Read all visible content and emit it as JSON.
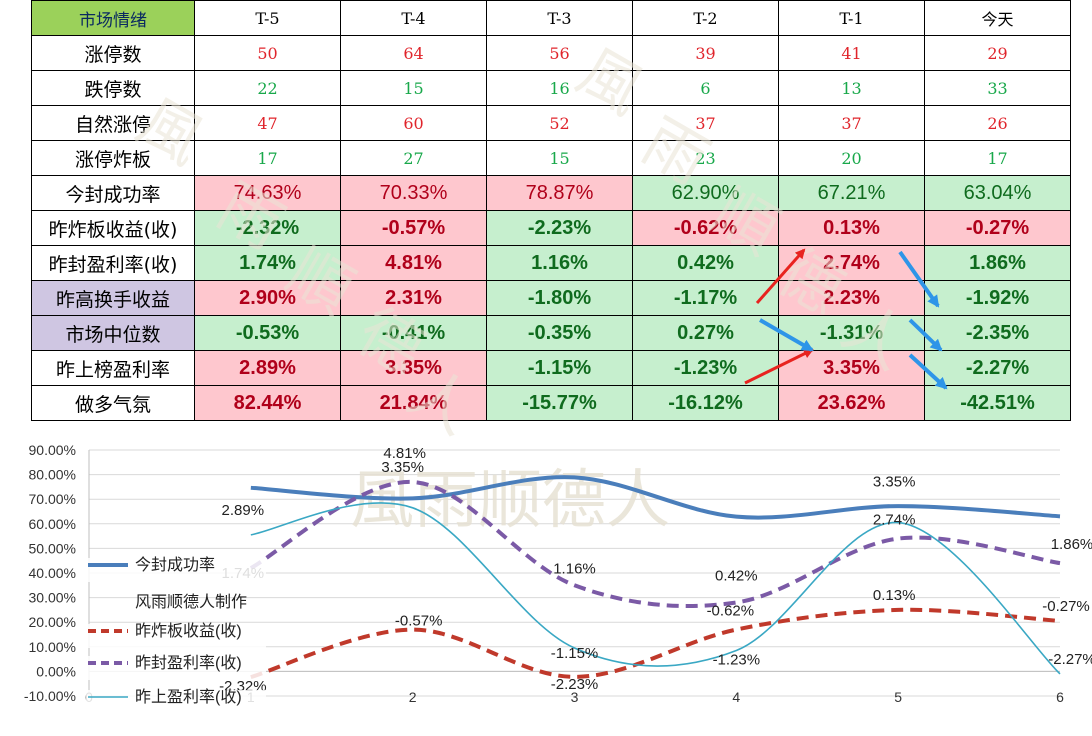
{
  "table": {
    "corner": "市场情绪",
    "columns": [
      "T-5",
      "T-4",
      "T-3",
      "T-2",
      "T-1",
      "今天"
    ],
    "rows": [
      {
        "label": "涨停数",
        "label_bg": "",
        "style": "count",
        "cells": [
          {
            "v": "50",
            "c": "red"
          },
          {
            "v": "64",
            "c": "red"
          },
          {
            "v": "56",
            "c": "red"
          },
          {
            "v": "39",
            "c": "red"
          },
          {
            "v": "41",
            "c": "red"
          },
          {
            "v": "29",
            "c": "red"
          }
        ]
      },
      {
        "label": "跌停数",
        "label_bg": "",
        "style": "count",
        "cells": [
          {
            "v": "22",
            "c": "green"
          },
          {
            "v": "15",
            "c": "green"
          },
          {
            "v": "16",
            "c": "green"
          },
          {
            "v": "6",
            "c": "green"
          },
          {
            "v": "13",
            "c": "green"
          },
          {
            "v": "33",
            "c": "green"
          }
        ]
      },
      {
        "label": "自然涨停",
        "label_bg": "",
        "style": "count",
        "cells": [
          {
            "v": "47",
            "c": "red"
          },
          {
            "v": "60",
            "c": "red"
          },
          {
            "v": "52",
            "c": "red"
          },
          {
            "v": "37",
            "c": "red"
          },
          {
            "v": "37",
            "c": "red"
          },
          {
            "v": "26",
            "c": "red"
          }
        ]
      },
      {
        "label": "涨停炸板",
        "label_bg": "",
        "style": "count",
        "cells": [
          {
            "v": "17",
            "c": "green"
          },
          {
            "v": "27",
            "c": "green"
          },
          {
            "v": "15",
            "c": "green"
          },
          {
            "v": "23",
            "c": "green"
          },
          {
            "v": "20",
            "c": "green"
          },
          {
            "v": "17",
            "c": "green"
          }
        ]
      },
      {
        "label": "今封成功率",
        "label_bg": "",
        "style": "plain",
        "cells": [
          {
            "v": "74.63%",
            "c": "dred",
            "bg": "pink"
          },
          {
            "v": "70.33%",
            "c": "dred",
            "bg": "pink"
          },
          {
            "v": "78.87%",
            "c": "dred",
            "bg": "pink"
          },
          {
            "v": "62.90%",
            "c": "dgreen",
            "bg": "green"
          },
          {
            "v": "67.21%",
            "c": "dgreen",
            "bg": "green"
          },
          {
            "v": "63.04%",
            "c": "dgreen",
            "bg": "green"
          }
        ]
      },
      {
        "label": "昨炸板收益(收)",
        "label_bg": "",
        "style": "bold",
        "cells": [
          {
            "v": "-2.32%",
            "c": "dgreen",
            "bg": "green"
          },
          {
            "v": "-0.57%",
            "c": "dred",
            "bg": "pink"
          },
          {
            "v": "-2.23%",
            "c": "dgreen",
            "bg": "green"
          },
          {
            "v": "-0.62%",
            "c": "dred",
            "bg": "pink"
          },
          {
            "v": "0.13%",
            "c": "dred",
            "bg": "pink"
          },
          {
            "v": "-0.27%",
            "c": "dred",
            "bg": "pink"
          }
        ]
      },
      {
        "label": "昨封盈利率(收)",
        "label_bg": "",
        "style": "bold",
        "cells": [
          {
            "v": "1.74%",
            "c": "dgreen",
            "bg": "green"
          },
          {
            "v": "4.81%",
            "c": "dred",
            "bg": "pink"
          },
          {
            "v": "1.16%",
            "c": "dgreen",
            "bg": "green"
          },
          {
            "v": "0.42%",
            "c": "dgreen",
            "bg": "green"
          },
          {
            "v": "2.74%",
            "c": "dred",
            "bg": "pink"
          },
          {
            "v": "1.86%",
            "c": "dgreen",
            "bg": "green"
          }
        ]
      },
      {
        "label": "昨高换手收益",
        "label_bg": "purple",
        "style": "bold",
        "cells": [
          {
            "v": "2.90%",
            "c": "dred",
            "bg": "pink"
          },
          {
            "v": "2.31%",
            "c": "dred",
            "bg": "pink"
          },
          {
            "v": "-1.80%",
            "c": "dgreen",
            "bg": "green"
          },
          {
            "v": "-1.17%",
            "c": "dgreen",
            "bg": "green"
          },
          {
            "v": "2.23%",
            "c": "dred",
            "bg": "pink"
          },
          {
            "v": "-1.92%",
            "c": "dgreen",
            "bg": "green"
          }
        ]
      },
      {
        "label": "市场中位数",
        "label_bg": "purple",
        "style": "bold",
        "cells": [
          {
            "v": "-0.53%",
            "c": "dgreen",
            "bg": "green"
          },
          {
            "v": "-0.41%",
            "c": "dgreen",
            "bg": "green"
          },
          {
            "v": "-0.35%",
            "c": "dgreen",
            "bg": "green"
          },
          {
            "v": "0.27%",
            "c": "dgreen",
            "bg": "green"
          },
          {
            "v": "-1.31%",
            "c": "dgreen",
            "bg": "green"
          },
          {
            "v": "-2.35%",
            "c": "dgreen",
            "bg": "green"
          }
        ]
      },
      {
        "label": "昨上榜盈利率",
        "label_bg": "",
        "style": "bold",
        "cells": [
          {
            "v": "2.89%",
            "c": "dred",
            "bg": "pink"
          },
          {
            "v": "3.35%",
            "c": "dred",
            "bg": "pink"
          },
          {
            "v": "-1.15%",
            "c": "dgreen",
            "bg": "green"
          },
          {
            "v": "-1.23%",
            "c": "dgreen",
            "bg": "green"
          },
          {
            "v": "3.35%",
            "c": "dred",
            "bg": "pink"
          },
          {
            "v": "-2.27%",
            "c": "dgreen",
            "bg": "green"
          }
        ]
      },
      {
        "label": "做多气氛",
        "label_bg": "",
        "style": "bold",
        "cells": [
          {
            "v": "82.44%",
            "c": "dred",
            "bg": "pink"
          },
          {
            "v": "21.84%",
            "c": "dred",
            "bg": "pink"
          },
          {
            "v": "-15.77%",
            "c": "dgreen",
            "bg": "green"
          },
          {
            "v": "-16.12%",
            "c": "dgreen",
            "bg": "green"
          },
          {
            "v": "23.62%",
            "c": "dred",
            "bg": "pink"
          },
          {
            "v": "-42.51%",
            "c": "dgreen",
            "bg": "green"
          }
        ]
      }
    ]
  },
  "watermark": {
    "chars": [
      "風",
      "雨",
      "順",
      "德",
      "人"
    ],
    "chart_text": "風雨顺德人"
  },
  "colors": {
    "pink_fill": "#fec7ce",
    "green_fill": "#c6efce",
    "corner_fill": "#9bd15a",
    "purple_fill": "#cfc6e2",
    "arrow_red": "#e8231f",
    "arrow_blue": "#2e95e8"
  },
  "chart_data": {
    "type": "line",
    "x": [
      0,
      1,
      2,
      3,
      4,
      5,
      6
    ],
    "xticks": [
      "0",
      "1",
      "2",
      "3",
      "4",
      "5",
      "6"
    ],
    "ylim": [
      -10,
      90
    ],
    "yticks": [
      "-10.00%",
      "0.00%",
      "10.00%",
      "20.00%",
      "30.00%",
      "40.00%",
      "50.00%",
      "60.00%",
      "70.00%",
      "80.00%",
      "90.00%"
    ],
    "grid": true,
    "legend_position": "left",
    "series": [
      {
        "name": "今封成功率",
        "color": "#4a7ebb",
        "style": "solid-thick",
        "x": [
          1,
          2,
          3,
          4,
          5,
          6
        ],
        "values": [
          74.63,
          70.33,
          78.87,
          62.9,
          67.21,
          63.04
        ],
        "labels": [
          "",
          "",
          "",
          "",
          "",
          ""
        ]
      },
      {
        "name": "昨炸板收益(收)",
        "color": "#c0392b",
        "style": "dashed",
        "x": [
          1,
          2,
          3,
          4,
          5,
          6
        ],
        "values": [
          -2.32,
          17,
          -2.23,
          17,
          25,
          20.5
        ],
        "labels": [
          "-2.32%",
          "-0.57%",
          "-2.23%",
          "-0.62%",
          "0.13%",
          "-0.27%"
        ]
      },
      {
        "name": "昨封盈利率(收)",
        "color": "#7b5aa6",
        "style": "dashed-thick",
        "x": [
          1,
          2,
          3,
          4,
          5,
          6
        ],
        "values": [
          42,
          77,
          35,
          28,
          54,
          44
        ],
        "labels": [
          "1.74%",
          "4.81%",
          "1.16%",
          "0.42%",
          "2.74%",
          "1.86%"
        ]
      },
      {
        "name": "昨上盈利率(收)",
        "color": "#3aa8c4",
        "style": "solid-thin",
        "x": [
          1,
          2,
          3,
          4,
          5,
          6
        ],
        "values": [
          55.5,
          66.5,
          9.5,
          8.5,
          60.5,
          -1
        ],
        "labels": [
          "2.89%",
          "3.35%",
          "-1.15%",
          "-1.23%",
          "3.35%",
          "-2.27%"
        ]
      }
    ],
    "legend_note": "风雨顺德人制作"
  }
}
